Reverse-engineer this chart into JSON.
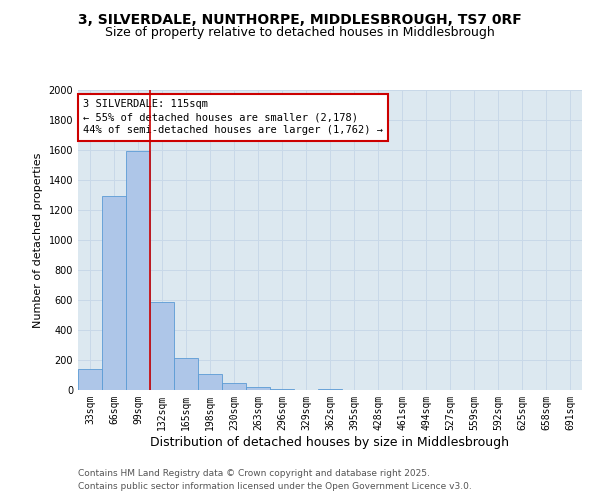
{
  "title_line1": "3, SILVERDALE, NUNTHORPE, MIDDLESBROUGH, TS7 0RF",
  "title_line2": "Size of property relative to detached houses in Middlesbrough",
  "xlabel": "Distribution of detached houses by size in Middlesbrough",
  "ylabel": "Number of detached properties",
  "categories": [
    "33sqm",
    "66sqm",
    "99sqm",
    "132sqm",
    "165sqm",
    "198sqm",
    "230sqm",
    "263sqm",
    "296sqm",
    "329sqm",
    "362sqm",
    "395sqm",
    "428sqm",
    "461sqm",
    "494sqm",
    "527sqm",
    "559sqm",
    "592sqm",
    "625sqm",
    "658sqm",
    "691sqm"
  ],
  "values": [
    140,
    1295,
    1595,
    585,
    215,
    105,
    50,
    20,
    10,
    0,
    10,
    0,
    0,
    0,
    0,
    0,
    0,
    0,
    0,
    0,
    0
  ],
  "bar_color": "#aec6e8",
  "bar_edge_color": "#5b9bd5",
  "annotation_text": "3 SILVERDALE: 115sqm\n← 55% of detached houses are smaller (2,178)\n44% of semi-detached houses are larger (1,762) →",
  "annotation_box_color": "#ffffff",
  "annotation_box_edge": "#cc0000",
  "vline_color": "#cc0000",
  "vline_x_index": 2.5,
  "ylim": [
    0,
    2000
  ],
  "yticks": [
    0,
    200,
    400,
    600,
    800,
    1000,
    1200,
    1400,
    1600,
    1800,
    2000
  ],
  "grid_color": "#c8d8e8",
  "background_color": "#dce8f0",
  "footer_line1": "Contains HM Land Registry data © Crown copyright and database right 2025.",
  "footer_line2": "Contains public sector information licensed under the Open Government Licence v3.0.",
  "title_fontsize": 10,
  "subtitle_fontsize": 9,
  "xlabel_fontsize": 9,
  "ylabel_fontsize": 8,
  "tick_fontsize": 7,
  "annotation_fontsize": 7.5,
  "footer_fontsize": 6.5
}
